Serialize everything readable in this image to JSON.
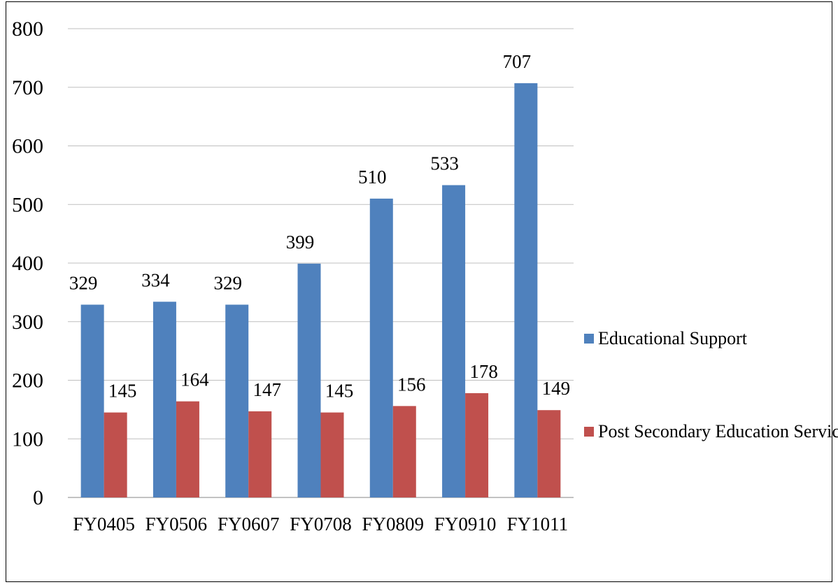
{
  "chart_data": {
    "type": "bar",
    "categories": [
      "FY0405",
      "FY0506",
      "FY0607",
      "FY0708",
      "FY0809",
      "FY0910",
      "FY1011"
    ],
    "series": [
      {
        "name": "Educational Support",
        "values": [
          329,
          334,
          329,
          399,
          510,
          533,
          707
        ],
        "color": "#4f81bd"
      },
      {
        "name": "Post Secondary Education Services",
        "values": [
          145,
          164,
          147,
          145,
          156,
          178,
          149
        ],
        "color": "#c0504d"
      }
    ],
    "ylim": [
      0,
      800
    ],
    "yticks": [
      0,
      100,
      200,
      300,
      400,
      500,
      600,
      700,
      800
    ],
    "grid": true,
    "legend": "right",
    "title": "",
    "xlabel": "",
    "ylabel": ""
  }
}
